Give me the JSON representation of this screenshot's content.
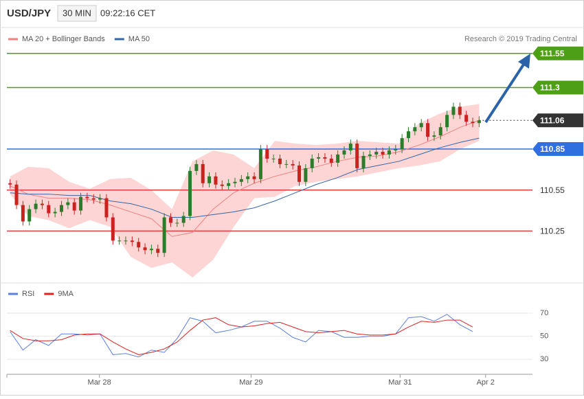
{
  "header": {
    "symbol": "USD/JPY",
    "interval": "30 MIN",
    "time": "09:22:16 CET"
  },
  "chart_data": [
    {
      "type": "candlestick",
      "credit": "Research © 2019 Trading Central",
      "xlim": [
        -0.5,
        81.3
      ],
      "ylim": [
        109.88,
        111.74
      ],
      "candles": {
        "up_color": "#2a7d2a",
        "down_color": "#c8231e",
        "open": [
          110.6,
          110.59,
          110.44,
          110.32,
          110.41,
          110.45,
          110.44,
          110.38,
          110.39,
          110.44,
          110.46,
          110.4,
          110.5,
          110.49,
          110.48,
          110.49,
          110.35,
          110.18,
          110.18,
          110.18,
          110.17,
          110.13,
          110.11,
          110.12,
          110.09,
          110.35,
          110.31,
          110.31,
          110.36,
          110.69,
          110.74,
          110.6,
          110.65,
          110.59,
          110.58,
          110.6,
          110.61,
          110.63,
          110.65,
          110.63,
          110.85,
          110.78,
          110.78,
          110.74,
          110.74,
          110.73,
          110.61,
          110.71,
          110.78,
          110.79,
          110.78,
          110.75,
          110.81,
          110.84,
          110.89,
          110.71,
          110.8,
          110.81,
          110.83,
          110.81,
          110.84,
          110.85,
          110.93,
          110.98,
          111.01,
          111.04,
          110.94,
          110.95,
          111.01,
          111.1,
          111.16,
          111.1,
          111.05,
          111.04
        ],
        "high": [
          110.63,
          110.62,
          110.47,
          110.44,
          110.48,
          110.48,
          110.47,
          110.42,
          110.47,
          110.49,
          110.49,
          110.53,
          110.53,
          110.52,
          110.52,
          110.52,
          110.38,
          110.21,
          110.21,
          110.21,
          110.2,
          110.16,
          110.15,
          110.15,
          110.38,
          110.38,
          110.34,
          110.39,
          110.72,
          110.77,
          110.77,
          110.68,
          110.68,
          110.62,
          110.63,
          110.64,
          110.66,
          110.68,
          110.68,
          110.88,
          110.88,
          110.81,
          110.81,
          110.77,
          110.77,
          110.76,
          110.74,
          110.81,
          110.82,
          110.82,
          110.81,
          110.84,
          110.87,
          110.92,
          110.92,
          110.83,
          110.84,
          110.86,
          110.86,
          110.87,
          110.88,
          110.96,
          111.01,
          111.04,
          111.07,
          111.07,
          110.98,
          111.04,
          111.13,
          111.19,
          111.19,
          111.13,
          111.08,
          111.09
        ],
        "low": [
          110.56,
          110.41,
          110.29,
          110.29,
          110.38,
          110.41,
          110.35,
          110.35,
          110.36,
          110.41,
          110.37,
          110.37,
          110.46,
          110.45,
          110.45,
          110.32,
          110.15,
          110.15,
          110.15,
          110.14,
          110.1,
          110.08,
          110.08,
          110.06,
          110.06,
          110.28,
          110.28,
          110.28,
          110.33,
          110.66,
          110.57,
          110.57,
          110.56,
          110.55,
          110.55,
          110.57,
          110.58,
          110.6,
          110.6,
          110.6,
          110.75,
          110.75,
          110.71,
          110.71,
          110.7,
          110.58,
          110.58,
          110.68,
          110.75,
          110.75,
          110.72,
          110.72,
          110.78,
          110.81,
          110.68,
          110.68,
          110.77,
          110.78,
          110.78,
          110.78,
          110.81,
          110.82,
          110.9,
          110.95,
          110.98,
          110.91,
          110.91,
          110.92,
          110.98,
          111.07,
          111.07,
          111.02,
          111.01,
          111.01
        ],
        "close": [
          110.59,
          110.44,
          110.32,
          110.41,
          110.45,
          110.44,
          110.38,
          110.39,
          110.44,
          110.46,
          110.4,
          110.5,
          110.49,
          110.48,
          110.49,
          110.35,
          110.18,
          110.18,
          110.18,
          110.17,
          110.13,
          110.11,
          110.12,
          110.09,
          110.35,
          110.31,
          110.31,
          110.36,
          110.69,
          110.74,
          110.6,
          110.65,
          110.59,
          110.58,
          110.6,
          110.61,
          110.63,
          110.65,
          110.63,
          110.85,
          110.78,
          110.78,
          110.74,
          110.74,
          110.73,
          110.61,
          110.71,
          110.78,
          110.79,
          110.78,
          110.75,
          110.81,
          110.84,
          110.89,
          110.71,
          110.8,
          110.81,
          110.83,
          110.81,
          110.84,
          110.85,
          110.93,
          110.98,
          111.01,
          111.04,
          110.94,
          110.95,
          111.01,
          111.1,
          111.16,
          111.1,
          111.05,
          111.04,
          111.06
        ]
      },
      "lines": [
        {
          "name": "MA 20 + Bollinger Bands",
          "color": "#f08080",
          "band_color": "#fdd5d5",
          "x": [
            0,
            2.8,
            6,
            9.2,
            12.4,
            15.6,
            18.8,
            22,
            25.2,
            28.4,
            31.6,
            34.8,
            38,
            41.2,
            44.4,
            47.6,
            50.9,
            54.1,
            57.3,
            60.5,
            63.7,
            66.9,
            70.1,
            73
          ],
          "values": [
            110.58,
            110.52,
            110.49,
            110.49,
            110.48,
            110.44,
            110.39,
            110.34,
            110.21,
            110.24,
            110.41,
            110.53,
            110.6,
            110.65,
            110.69,
            110.72,
            110.76,
            110.79,
            110.8,
            110.83,
            110.88,
            110.94,
            111.01,
            111.06
          ],
          "band_upper": [
            110.65,
            110.72,
            110.71,
            110.61,
            110.56,
            110.63,
            110.64,
            110.55,
            110.41,
            110.76,
            110.84,
            110.81,
            110.71,
            110.91,
            110.89,
            110.88,
            110.89,
            110.91,
            110.9,
            110.89,
            111.04,
            111.11,
            111.16,
            111.18
          ],
          "band_lower": [
            110.52,
            110.36,
            110.33,
            110.27,
            110.33,
            110.28,
            110.06,
            109.98,
            110.02,
            109.91,
            110.04,
            110.28,
            110.49,
            110.5,
            110.58,
            110.61,
            110.63,
            110.65,
            110.68,
            110.71,
            110.73,
            110.76,
            110.85,
            110.91
          ]
        },
        {
          "name": "MA 50",
          "color": "#3465a4",
          "x": [
            0,
            2.8,
            6,
            9.2,
            12.4,
            15.6,
            18.8,
            22,
            25.2,
            28.4,
            31.6,
            34.8,
            38,
            41.2,
            44.4,
            47.6,
            50.9,
            54.1,
            57.3,
            60.5,
            63.7,
            66.9,
            70.1,
            73
          ],
          "values": [
            110.53,
            110.52,
            110.52,
            110.51,
            110.51,
            110.47,
            110.45,
            110.41,
            110.35,
            110.35,
            110.37,
            110.39,
            110.42,
            110.47,
            110.53,
            110.59,
            110.64,
            110.7,
            110.73,
            110.76,
            110.81,
            110.86,
            110.9,
            110.93
          ]
        }
      ],
      "levels": [
        {
          "value": 111.55,
          "color": "#4c9f16",
          "box": true,
          "dotted": false
        },
        {
          "value": 111.3,
          "color": "#4c9f16",
          "box": true,
          "dotted": false
        },
        {
          "value": 111.06,
          "color": "#333333",
          "box": true,
          "dotted": true
        },
        {
          "value": 110.85,
          "color": "#2f6fe0",
          "box": true,
          "dotted": false
        },
        {
          "value": 110.55,
          "color": "#e04040",
          "box": false,
          "dotted": false
        },
        {
          "value": 110.25,
          "color": "#e04040",
          "box": false,
          "dotted": false
        }
      ]
    },
    {
      "type": "line",
      "xlim": [
        -0.5,
        81.3
      ],
      "ylim": [
        17,
        95
      ],
      "yticks": [
        30,
        50,
        70
      ],
      "grid": true,
      "xticks": [
        {
          "value": 13.9,
          "label": "Mar 28"
        },
        {
          "value": 37.5,
          "label": "Mar 29"
        },
        {
          "value": 60.7,
          "label": "Mar 31"
        },
        {
          "value": 74.0,
          "label": "Apr 2"
        }
      ],
      "x": [
        0,
        2,
        4,
        6,
        8,
        10,
        12,
        14,
        16,
        18,
        20,
        22,
        24,
        26,
        28,
        30,
        32,
        34,
        36,
        38,
        40,
        42,
        44,
        46,
        48,
        50,
        52,
        54,
        56,
        58,
        60,
        62,
        64,
        66,
        68,
        70,
        72
      ],
      "series": [
        {
          "name": "RSI",
          "color": "#5b7fde",
          "values": [
            54,
            38,
            47,
            42,
            52,
            52,
            51,
            52,
            34,
            35,
            32,
            38,
            36,
            48,
            66,
            63,
            53,
            55,
            58,
            63,
            63,
            57,
            49,
            45,
            55,
            54,
            49,
            49,
            50,
            50,
            52,
            66,
            67,
            63,
            69,
            60,
            54
          ]
        },
        {
          "name": "9MA",
          "color": "#e02020",
          "values": [
            55,
            48,
            46,
            46,
            47,
            51,
            52,
            52,
            45,
            39,
            34,
            36,
            39,
            45,
            55,
            64,
            66,
            60,
            58,
            59,
            61,
            62,
            58,
            54,
            53,
            54,
            55,
            52,
            51,
            51,
            52,
            58,
            63,
            62,
            64,
            64,
            58
          ]
        }
      ]
    }
  ]
}
